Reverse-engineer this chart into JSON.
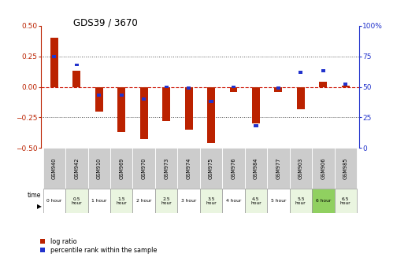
{
  "title": "GDS39 / 3670",
  "samples": [
    "GSM940",
    "GSM942",
    "GSM910",
    "GSM969",
    "GSM970",
    "GSM973",
    "GSM974",
    "GSM975",
    "GSM976",
    "GSM984",
    "GSM977",
    "GSM903",
    "GSM906",
    "GSM985"
  ],
  "time_labels": [
    "0 hour",
    "0.5\nhour",
    "1 hour",
    "1.5\nhour",
    "2 hour",
    "2.5\nhour",
    "3 hour",
    "3.5\nhour",
    "4 hour",
    "4.5\nhour",
    "5 hour",
    "5.5\nhour",
    "6 hour",
    "6.5\nhour"
  ],
  "time_bg": [
    "#ffffff",
    "#eaf5e0",
    "#ffffff",
    "#eaf5e0",
    "#ffffff",
    "#eaf5e0",
    "#ffffff",
    "#eaf5e0",
    "#ffffff",
    "#eaf5e0",
    "#ffffff",
    "#eaf5e0",
    "#90d060",
    "#eaf5e0"
  ],
  "log_ratio": [
    0.4,
    0.13,
    -0.2,
    -0.37,
    -0.43,
    -0.28,
    -0.35,
    -0.46,
    -0.04,
    -0.3,
    -0.04,
    -0.18,
    0.04,
    0.01
  ],
  "percentile": [
    75,
    68,
    43,
    43,
    40,
    50,
    49,
    38,
    50,
    18,
    49,
    62,
    63,
    52
  ],
  "ylim": [
    -0.5,
    0.5
  ],
  "yticks_left": [
    -0.5,
    -0.25,
    0,
    0.25,
    0.5
  ],
  "yticks_right_labels": [
    "0",
    "25",
    "50",
    "75",
    "100%"
  ],
  "yticks_right_vals": [
    0,
    25,
    50,
    75,
    100
  ],
  "bar_color": "#bb2200",
  "percentile_color": "#2233cc",
  "zero_line_color": "#cc1100",
  "dot_line_color": "#555555",
  "legend_log": "log ratio",
  "legend_pct": "percentile rank within the sample"
}
